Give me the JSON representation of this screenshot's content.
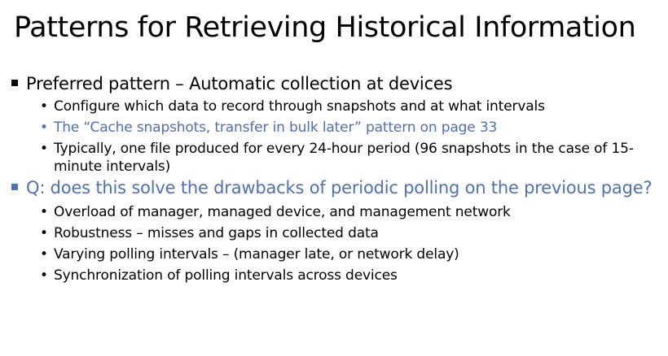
{
  "slide": {
    "title": "Patterns for Retrieving Historical Information",
    "items": [
      {
        "text": "Preferred pattern – Automatic collection at devices",
        "sub": [
          "Configure which data to record through snapshots and at what intervals",
          "The “Cache snapshots, transfer in bulk later” pattern on page 33",
          "Typically, one file produced for every 24-hour period (96 snapshots in the case of 15-minute intervals)"
        ]
      },
      {
        "text": "Q: does this solve the drawbacks of periodic polling on the previous page?",
        "sub": [
          "Overload of manager, managed device, and management network",
          "Robustness – misses and gaps in collected data",
          "Varying polling intervals – (manager late, or network delay)",
          "Synchronization of polling intervals across devices"
        ]
      }
    ]
  },
  "colors": {
    "text": "#000000",
    "accent": "#4f6fba",
    "background": "#ffffff"
  }
}
